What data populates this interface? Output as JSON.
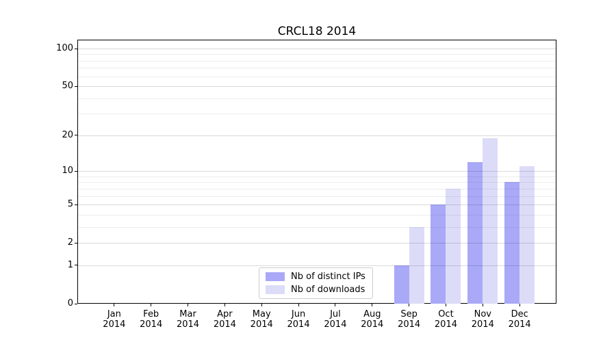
{
  "chart_data": {
    "type": "bar",
    "title": "CRCL18 2014",
    "x_months": [
      "Jan",
      "Feb",
      "Mar",
      "Apr",
      "May",
      "Jun",
      "Jul",
      "Aug",
      "Sep",
      "Oct",
      "Nov",
      "Dec"
    ],
    "x_year": "2014",
    "series": [
      {
        "name": "Nb of distinct IPs",
        "color": "#a9a9f8",
        "values": [
          0,
          0,
          0,
          0,
          0,
          0,
          0,
          0,
          1,
          5,
          12,
          8
        ]
      },
      {
        "name": "Nb of downloads",
        "color": "#dcdcf8",
        "values": [
          0,
          0,
          0,
          0,
          0,
          0,
          0,
          0,
          3,
          7,
          19,
          11
        ]
      }
    ],
    "yscale": "log1p",
    "ylim": [
      0,
      100
    ],
    "y_tick_values": [
      0,
      1,
      2,
      5,
      10,
      20,
      50,
      100
    ],
    "y_tick_labels": [
      "0",
      "1",
      "2",
      "5",
      "10",
      "20",
      "50",
      "100"
    ],
    "grid_major_values": [
      1,
      2,
      5,
      10,
      20,
      50,
      100
    ],
    "grid_minor_values": [
      3,
      4,
      6,
      7,
      8,
      9,
      30,
      40,
      60,
      70,
      80,
      90
    ],
    "grid_on": true,
    "legend": {
      "location": "lower center",
      "entries": [
        "Nb of distinct IPs",
        "Nb of downloads"
      ]
    }
  }
}
